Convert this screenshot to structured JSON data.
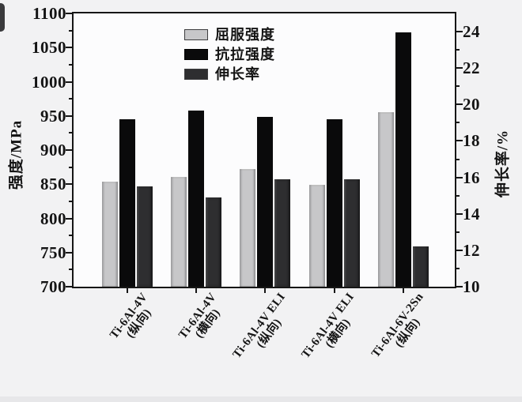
{
  "chart_data": {
    "type": "bar",
    "title": "",
    "categories": [
      {
        "name": "Ti-6Al-4V",
        "orientation": "(纵向)"
      },
      {
        "name": "Ti-6Al-4V",
        "orientation": "(横向)"
      },
      {
        "name": "Ti-6Al-4V ELI",
        "orientation": "(纵向)"
      },
      {
        "name": "Ti-6Al-4V ELI",
        "orientation": "(横向)"
      },
      {
        "name": "Ti-6Al-6V-2Sn",
        "orientation": "(纵向)"
      }
    ],
    "series": [
      {
        "name": "屈服强度",
        "axis": "left",
        "unit": "MPa",
        "color": "#c7c7c9",
        "values": [
          854,
          861,
          872,
          849,
          956
        ]
      },
      {
        "name": "抗拉强度",
        "axis": "left",
        "unit": "MPa",
        "color": "#0a0a0b",
        "values": [
          945,
          958,
          949,
          945,
          1072
        ]
      },
      {
        "name": "伸长率",
        "axis": "right",
        "unit": "%",
        "color": "#2e2e30",
        "values": [
          15.5,
          14.9,
          15.9,
          15.9,
          12.2
        ]
      }
    ],
    "left_axis": {
      "label": "强度/MPa",
      "min": 700,
      "max": 1100,
      "major_step": 50,
      "minor_step": 25,
      "tick_labels": [
        "700",
        "750",
        "800",
        "850",
        "900",
        "950",
        "1000",
        "1050",
        "1100"
      ]
    },
    "right_axis": {
      "label": "伸长率/%",
      "min": 10,
      "max": 25,
      "major_step": 2,
      "minor_step": 1,
      "tick_labels": [
        "10",
        "12",
        "14",
        "16",
        "18",
        "20",
        "22",
        "24"
      ]
    },
    "legend": {
      "entries": [
        "屈服强度",
        "抗拉强度",
        "伸长率"
      ],
      "position": "top-inside-left"
    },
    "grid": false,
    "frame": true
  }
}
